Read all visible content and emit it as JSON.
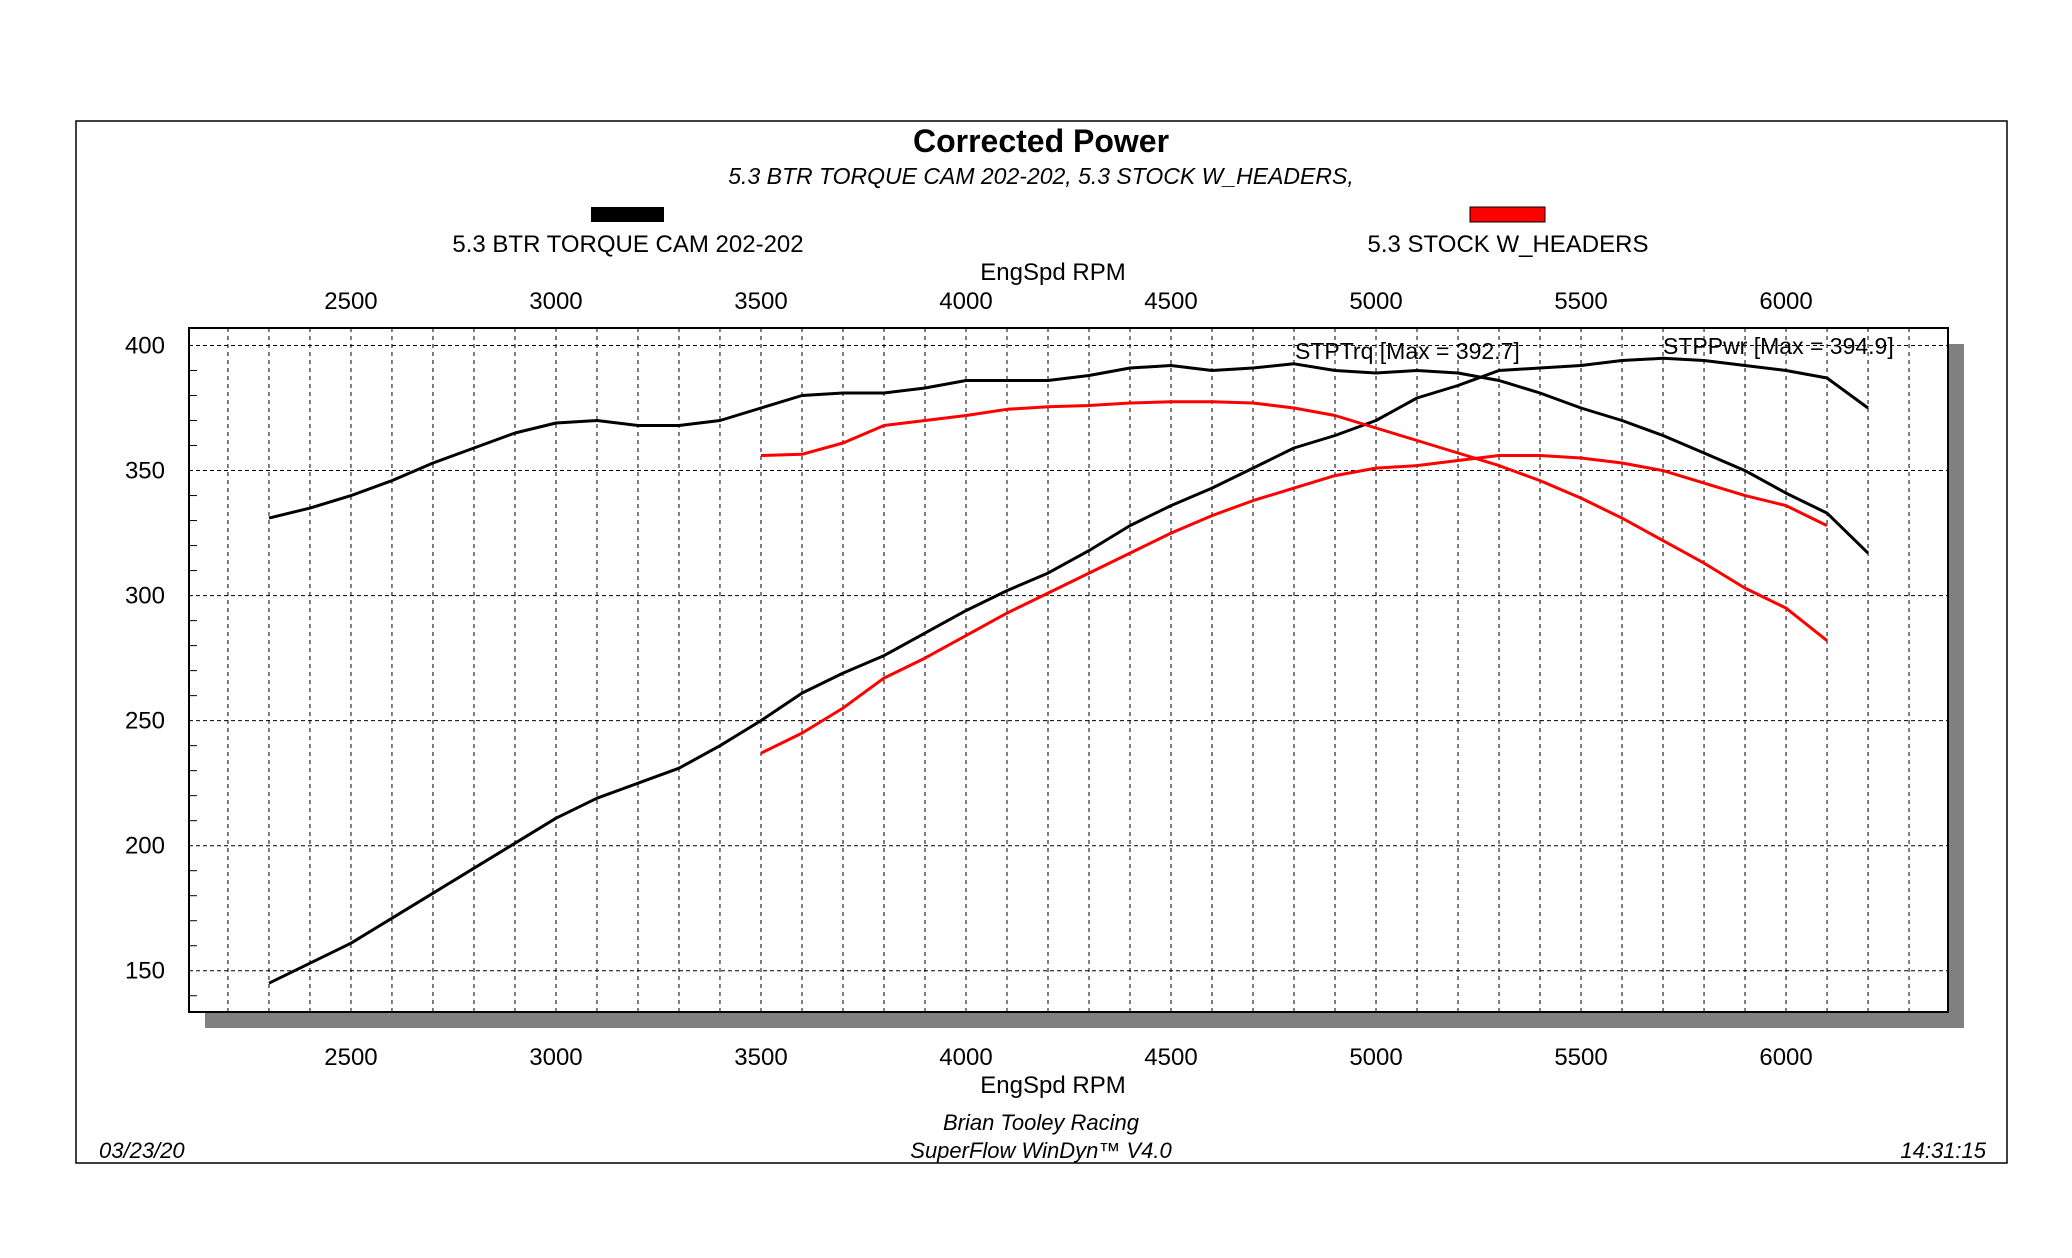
{
  "chart_data": {
    "type": "line",
    "title": "Corrected Power",
    "subtitle": "5.3 BTR TORQUE CAM 202-202, 5.3 STOCK W_HEADERS,",
    "xlabel": "EngSpd RPM",
    "xlabel_top": "EngSpd RPM",
    "ylabel": "",
    "xlim": [
      2105,
      6395
    ],
    "ylim": [
      133.5,
      407
    ],
    "x_ticks": [
      2500,
      3000,
      3500,
      4000,
      4500,
      5000,
      5500,
      6000
    ],
    "y_ticks": [
      150,
      200,
      250,
      300,
      350,
      400
    ],
    "grid": true,
    "legend": [
      {
        "label": "5.3 BTR TORQUE CAM 202-202",
        "color": "#000000"
      },
      {
        "label": "5.3 STOCK W_HEADERS",
        "color": "#ff0000"
      }
    ],
    "annotations": {
      "torque_max": "STPTrq [Max = 392.7]",
      "power_max": "STPPwr [Max = 394.9]"
    },
    "series": [
      {
        "run": "5.3 BTR TORQUE CAM 202-202",
        "measure": "STPTrq",
        "color": "#000000",
        "x": [
          2300,
          2400,
          2500,
          2600,
          2700,
          2800,
          2900,
          3000,
          3100,
          3200,
          3300,
          3400,
          3500,
          3600,
          3700,
          3800,
          3900,
          4000,
          4100,
          4200,
          4300,
          4400,
          4500,
          4600,
          4700,
          4800,
          4900,
          5000,
          5100,
          5200,
          5300,
          5400,
          5500,
          5600,
          5700,
          5800,
          5900,
          6000,
          6100,
          6200
        ],
        "y": [
          331,
          335,
          340,
          346,
          353,
          359,
          365,
          369,
          370,
          368,
          368,
          370,
          375,
          380,
          381,
          381,
          383,
          386,
          386,
          386,
          388,
          391,
          392,
          390,
          391,
          392.7,
          390,
          389,
          390,
          389,
          386,
          381,
          375,
          370,
          364,
          357,
          350,
          341,
          333,
          317
        ]
      },
      {
        "run": "5.3 BTR TORQUE CAM 202-202",
        "measure": "STPPwr",
        "color": "#000000",
        "x": [
          2300,
          2400,
          2500,
          2600,
          2700,
          2800,
          2900,
          3000,
          3100,
          3200,
          3300,
          3400,
          3500,
          3600,
          3700,
          3800,
          3900,
          4000,
          4100,
          4200,
          4300,
          4400,
          4500,
          4600,
          4700,
          4800,
          4900,
          5000,
          5100,
          5200,
          5300,
          5400,
          5500,
          5600,
          5700,
          5800,
          5900,
          6000,
          6100,
          6200
        ],
        "y": [
          145,
          153,
          161,
          171,
          181,
          191,
          201,
          211,
          219,
          225,
          231,
          240,
          250,
          261,
          269,
          276,
          285,
          294,
          302,
          309,
          318,
          328,
          336,
          343,
          351,
          359,
          364,
          370,
          379,
          384,
          390,
          391,
          392,
          394,
          394.9,
          394,
          392,
          390,
          387,
          375
        ]
      },
      {
        "run": "5.3 STOCK W_HEADERS",
        "measure": "STPTrq",
        "color": "#ff0000",
        "x": [
          3500,
          3600,
          3700,
          3800,
          3900,
          4000,
          4100,
          4200,
          4300,
          4400,
          4500,
          4600,
          4700,
          4800,
          4900,
          5000,
          5100,
          5200,
          5300,
          5400,
          5500,
          5600,
          5700,
          5800,
          5900,
          6000,
          6100
        ],
        "y": [
          356,
          356.5,
          361,
          368,
          370,
          372,
          374.5,
          375.5,
          376,
          377,
          377.5,
          377.5,
          377,
          375,
          372,
          367,
          362,
          357,
          352,
          346,
          339,
          331,
          322,
          313,
          303,
          295,
          282
        ]
      },
      {
        "run": "5.3 STOCK W_HEADERS",
        "measure": "STPPwr",
        "color": "#ff0000",
        "x": [
          3500,
          3600,
          3700,
          3800,
          3900,
          4000,
          4100,
          4200,
          4300,
          4400,
          4500,
          4600,
          4700,
          4800,
          4900,
          5000,
          5100,
          5200,
          5300,
          5400,
          5500,
          5600,
          5700,
          5800,
          5900,
          6000,
          6100
        ],
        "y": [
          237,
          245,
          255,
          267,
          275,
          284,
          293,
          301,
          309,
          317,
          325,
          332,
          338,
          343,
          348,
          351,
          352,
          354,
          356,
          356,
          355,
          353,
          350,
          345,
          340,
          336,
          328
        ]
      }
    ]
  },
  "footer": {
    "company": "Brian Tooley Racing",
    "software": "SuperFlow WinDyn™ V4.0",
    "date": "03/23/20",
    "time": "14:31:15"
  }
}
